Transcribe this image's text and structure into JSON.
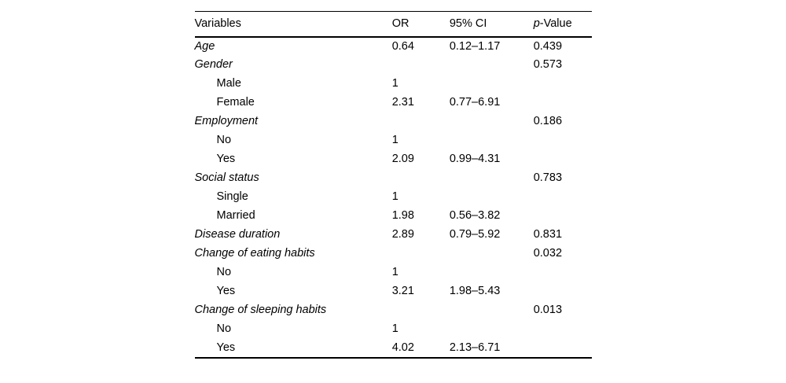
{
  "colors": {
    "background": "#ffffff",
    "text": "#000000",
    "rules": "#000000"
  },
  "table": {
    "header": {
      "variables": "Variables",
      "or": "OR",
      "ci": "95% CI",
      "p_italic": "p",
      "p_rest": "-Value"
    },
    "rows": [
      {
        "variable": "Age",
        "style": "category",
        "or": "0.64",
        "ci": "0.12–1.17",
        "p": "0.439"
      },
      {
        "variable": "Gender",
        "style": "category",
        "or": "",
        "ci": "",
        "p": "0.573"
      },
      {
        "variable": "Male",
        "style": "sub",
        "or": "1",
        "ci": "",
        "p": ""
      },
      {
        "variable": "Female",
        "style": "sub",
        "or": "2.31",
        "ci": "0.77–6.91",
        "p": ""
      },
      {
        "variable": "Employment",
        "style": "category",
        "or": "",
        "ci": "",
        "p": "0.186"
      },
      {
        "variable": "No",
        "style": "sub",
        "or": "1",
        "ci": "",
        "p": ""
      },
      {
        "variable": "Yes",
        "style": "sub",
        "or": "2.09",
        "ci": "0.99–4.31",
        "p": ""
      },
      {
        "variable": "Social status",
        "style": "category",
        "or": "",
        "ci": "",
        "p": "0.783"
      },
      {
        "variable": "Single",
        "style": "sub",
        "or": "1",
        "ci": "",
        "p": ""
      },
      {
        "variable": "Married",
        "style": "sub",
        "or": "1.98",
        "ci": "0.56–3.82",
        "p": ""
      },
      {
        "variable": "Disease duration",
        "style": "category",
        "or": "2.89",
        "ci": "0.79–5.92",
        "p": "0.831"
      },
      {
        "variable": "Change of eating habits",
        "style": "category",
        "or": "",
        "ci": "",
        "p": "0.032"
      },
      {
        "variable": "No",
        "style": "sub",
        "or": "1",
        "ci": "",
        "p": ""
      },
      {
        "variable": "Yes",
        "style": "sub",
        "or": "3.21",
        "ci": "1.98–5.43",
        "p": ""
      },
      {
        "variable": "Change of sleeping habits",
        "style": "category",
        "or": "",
        "ci": "",
        "p": "0.013"
      },
      {
        "variable": "No",
        "style": "sub",
        "or": "1",
        "ci": "",
        "p": ""
      },
      {
        "variable": "Yes",
        "style": "sub",
        "or": "4.02",
        "ci": "2.13–6.71",
        "p": ""
      }
    ]
  }
}
